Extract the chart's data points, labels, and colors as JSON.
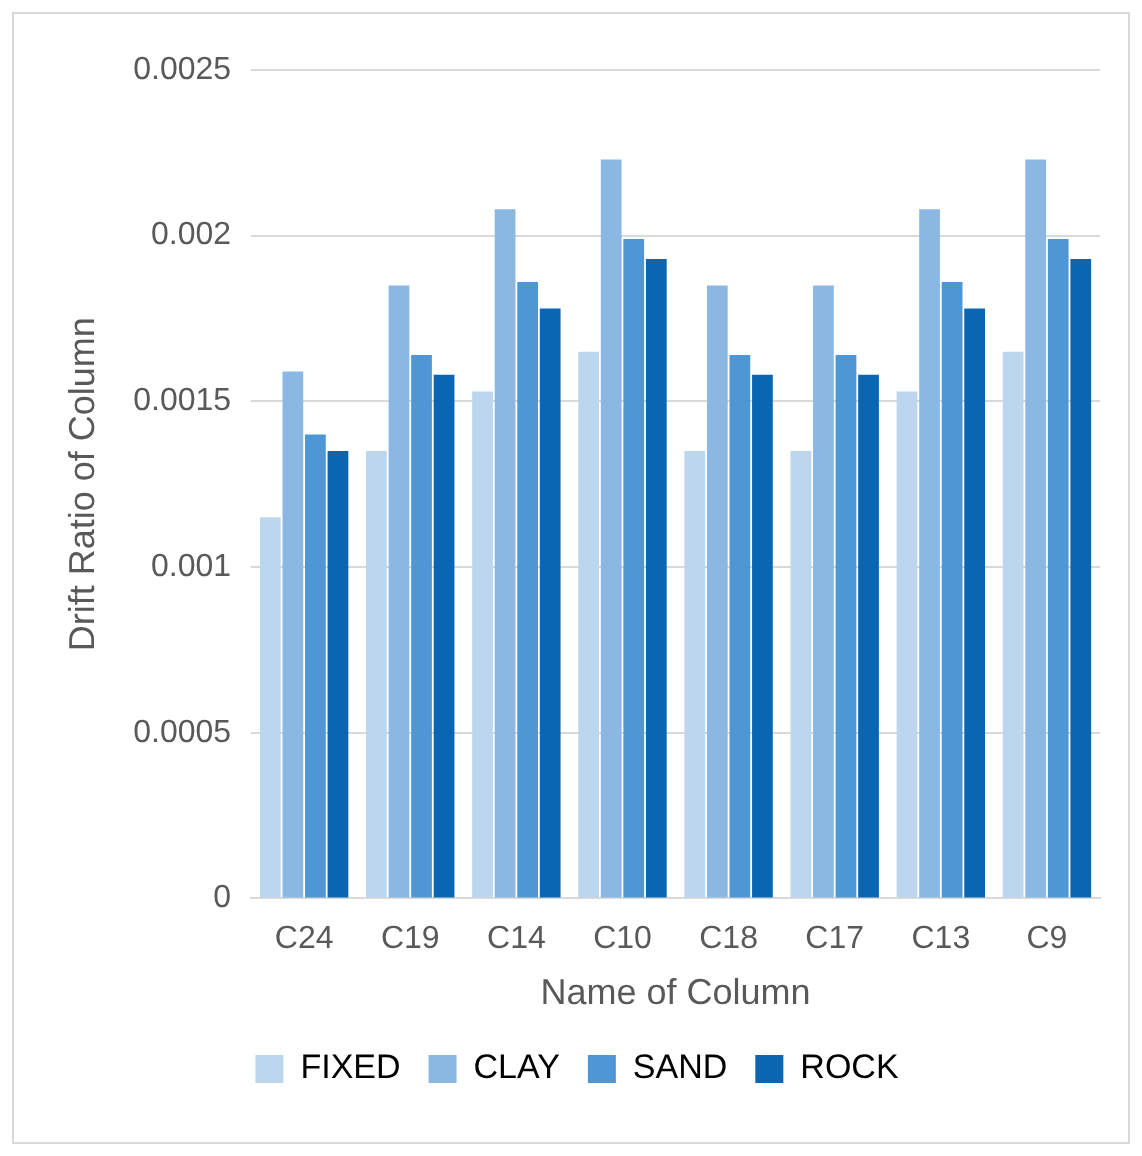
{
  "chart_data": {
    "type": "bar",
    "xlabel": "Name of Column",
    "ylabel": "Drift Ratio of Column",
    "categories": [
      "C24",
      "C19",
      "C14",
      "C10",
      "C18",
      "C17",
      "C13",
      "C9"
    ],
    "series": [
      {
        "name": "FIXED",
        "color": "#bcd6ee",
        "values": [
          0.00115,
          0.00135,
          0.00153,
          0.00165,
          0.00135,
          0.00135,
          0.00153,
          0.00165
        ]
      },
      {
        "name": "CLAY",
        "color": "#8ab8e2",
        "values": [
          0.00159,
          0.00185,
          0.00208,
          0.00223,
          0.00185,
          0.00185,
          0.00208,
          0.00223
        ]
      },
      {
        "name": "SAND",
        "color": "#4f97d4",
        "values": [
          0.0014,
          0.00164,
          0.00186,
          0.00199,
          0.00164,
          0.00164,
          0.00186,
          0.00199
        ]
      },
      {
        "name": "ROCK",
        "color": "#0a66b2",
        "values": [
          0.00135,
          0.00158,
          0.00178,
          0.00193,
          0.00158,
          0.00158,
          0.00178,
          0.00193
        ]
      }
    ],
    "ylim": [
      0,
      0.0025
    ],
    "yticks": [
      0,
      0.0005,
      0.001,
      0.0015,
      0.002,
      0.0025
    ],
    "grid": "y",
    "legend": "bottom"
  }
}
